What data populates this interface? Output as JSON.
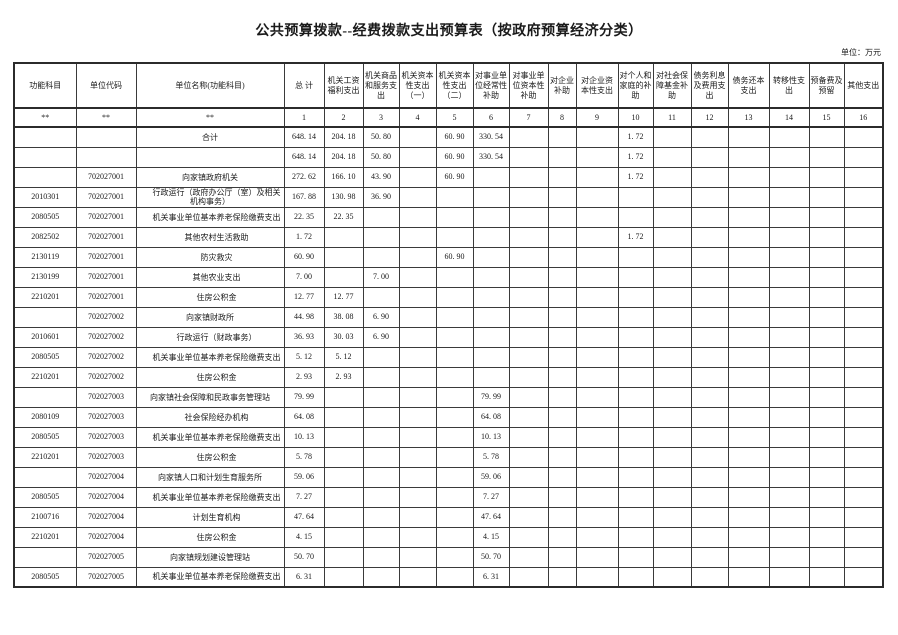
{
  "meta": {
    "title": "公共预算拨款--经费拨款支出预算表（按政府预算经济分类）",
    "unit_note": "单位：万元"
  },
  "table": {
    "headers": [
      "功能科目",
      "单位代码",
      "单位名称(功能科目)",
      "总  计",
      "机关工资福利支出",
      "机关商品和服务支出",
      "机关资本性支出（一）",
      "机关资本性支出（二）",
      "对事业单位经常性补助",
      "对事业单位资本性补助",
      "对企业补助",
      "对企业资本性支出",
      "对个人和家庭的补助",
      "对社会保障基金补助",
      "债务利息及费用支出",
      "债务还本支出",
      "转移性支出",
      "预备费及预留",
      "其他支出"
    ],
    "index_row": [
      "**",
      "**",
      "**",
      "1",
      "2",
      "3",
      "4",
      "5",
      "6",
      "7",
      "8",
      "9",
      "10",
      "11",
      "12",
      "13",
      "14",
      "15",
      "16"
    ],
    "rows": [
      {
        "func": "",
        "code": "",
        "name": "合计",
        "level": "group",
        "values": [
          "648. 14",
          "204. 18",
          "50. 80",
          "",
          "60. 90",
          "330. 54",
          "",
          "",
          "",
          "1. 72",
          "",
          "",
          "",
          "",
          "",
          ""
        ]
      },
      {
        "func": "",
        "code": "",
        "name": "",
        "level": "group",
        "values": [
          "648. 14",
          "204. 18",
          "50. 80",
          "",
          "60. 90",
          "330. 54",
          "",
          "",
          "",
          "1. 72",
          "",
          "",
          "",
          "",
          "",
          ""
        ]
      },
      {
        "func": "",
        "code": "702027001",
        "name": "向家镇政府机关",
        "level": "group",
        "values": [
          "272. 62",
          "166. 10",
          "43. 90",
          "",
          "60. 90",
          "",
          "",
          "",
          "",
          "1. 72",
          "",
          "",
          "",
          "",
          "",
          ""
        ]
      },
      {
        "func": "2010301",
        "code": "702027001",
        "name": "行政运行（政府办公厅（室）及相关机构事务）",
        "level": "detail",
        "values": [
          "167. 88",
          "130. 98",
          "36. 90",
          "",
          "",
          "",
          "",
          "",
          "",
          "",
          "",
          "",
          "",
          "",
          "",
          ""
        ]
      },
      {
        "func": "2080505",
        "code": "702027001",
        "name": "机关事业单位基本养老保险缴费支出",
        "level": "detail",
        "values": [
          "22. 35",
          "22. 35",
          "",
          "",
          "",
          "",
          "",
          "",
          "",
          "",
          "",
          "",
          "",
          "",
          "",
          ""
        ]
      },
      {
        "func": "2082502",
        "code": "702027001",
        "name": "其他农村生活救助",
        "level": "detail",
        "values": [
          "1. 72",
          "",
          "",
          "",
          "",
          "",
          "",
          "",
          "",
          "1. 72",
          "",
          "",
          "",
          "",
          "",
          ""
        ]
      },
      {
        "func": "2130119",
        "code": "702027001",
        "name": "防灾救灾",
        "level": "detail",
        "values": [
          "60. 90",
          "",
          "",
          "",
          "60. 90",
          "",
          "",
          "",
          "",
          "",
          "",
          "",
          "",
          "",
          "",
          ""
        ]
      },
      {
        "func": "2130199",
        "code": "702027001",
        "name": "其他农业支出",
        "level": "detail",
        "values": [
          "7. 00",
          "",
          "7. 00",
          "",
          "",
          "",
          "",
          "",
          "",
          "",
          "",
          "",
          "",
          "",
          "",
          ""
        ]
      },
      {
        "func": "2210201",
        "code": "702027001",
        "name": "住房公积金",
        "level": "detail",
        "values": [
          "12. 77",
          "12. 77",
          "",
          "",
          "",
          "",
          "",
          "",
          "",
          "",
          "",
          "",
          "",
          "",
          "",
          ""
        ]
      },
      {
        "func": "",
        "code": "702027002",
        "name": "向家镇财政所",
        "level": "group",
        "values": [
          "44. 98",
          "38. 08",
          "6. 90",
          "",
          "",
          "",
          "",
          "",
          "",
          "",
          "",
          "",
          "",
          "",
          "",
          ""
        ]
      },
      {
        "func": "2010601",
        "code": "702027002",
        "name": "行政运行（财政事务）",
        "level": "detail",
        "values": [
          "36. 93",
          "30. 03",
          "6. 90",
          "",
          "",
          "",
          "",
          "",
          "",
          "",
          "",
          "",
          "",
          "",
          "",
          ""
        ]
      },
      {
        "func": "2080505",
        "code": "702027002",
        "name": "机关事业单位基本养老保险缴费支出",
        "level": "detail",
        "values": [
          "5. 12",
          "5. 12",
          "",
          "",
          "",
          "",
          "",
          "",
          "",
          "",
          "",
          "",
          "",
          "",
          "",
          ""
        ]
      },
      {
        "func": "2210201",
        "code": "702027002",
        "name": "住房公积金",
        "level": "detail",
        "values": [
          "2. 93",
          "2. 93",
          "",
          "",
          "",
          "",
          "",
          "",
          "",
          "",
          "",
          "",
          "",
          "",
          "",
          ""
        ]
      },
      {
        "func": "",
        "code": "702027003",
        "name": "向家镇社会保障和民政事务管理站",
        "level": "group",
        "values": [
          "79. 99",
          "",
          "",
          "",
          "",
          "79. 99",
          "",
          "",
          "",
          "",
          "",
          "",
          "",
          "",
          "",
          ""
        ]
      },
      {
        "func": "2080109",
        "code": "702027003",
        "name": "社会保险经办机构",
        "level": "detail",
        "values": [
          "64. 08",
          "",
          "",
          "",
          "",
          "64. 08",
          "",
          "",
          "",
          "",
          "",
          "",
          "",
          "",
          "",
          ""
        ]
      },
      {
        "func": "2080505",
        "code": "702027003",
        "name": "机关事业单位基本养老保险缴费支出",
        "level": "detail",
        "values": [
          "10. 13",
          "",
          "",
          "",
          "",
          "10. 13",
          "",
          "",
          "",
          "",
          "",
          "",
          "",
          "",
          "",
          ""
        ]
      },
      {
        "func": "2210201",
        "code": "702027003",
        "name": "住房公积金",
        "level": "detail",
        "values": [
          "5. 78",
          "",
          "",
          "",
          "",
          "5. 78",
          "",
          "",
          "",
          "",
          "",
          "",
          "",
          "",
          "",
          ""
        ]
      },
      {
        "func": "",
        "code": "702027004",
        "name": "向家镇人口和计划生育服务所",
        "level": "group",
        "values": [
          "59. 06",
          "",
          "",
          "",
          "",
          "59. 06",
          "",
          "",
          "",
          "",
          "",
          "",
          "",
          "",
          "",
          ""
        ]
      },
      {
        "func": "2080505",
        "code": "702027004",
        "name": "机关事业单位基本养老保险缴费支出",
        "level": "detail",
        "values": [
          "7. 27",
          "",
          "",
          "",
          "",
          "7. 27",
          "",
          "",
          "",
          "",
          "",
          "",
          "",
          "",
          "",
          ""
        ]
      },
      {
        "func": "2100716",
        "code": "702027004",
        "name": "计划生育机构",
        "level": "detail",
        "values": [
          "47. 64",
          "",
          "",
          "",
          "",
          "47. 64",
          "",
          "",
          "",
          "",
          "",
          "",
          "",
          "",
          "",
          ""
        ]
      },
      {
        "func": "2210201",
        "code": "702027004",
        "name": "住房公积金",
        "level": "detail",
        "values": [
          "4. 15",
          "",
          "",
          "",
          "",
          "4. 15",
          "",
          "",
          "",
          "",
          "",
          "",
          "",
          "",
          "",
          ""
        ]
      },
      {
        "func": "",
        "code": "702027005",
        "name": "向家镇规划建设管理站",
        "level": "group",
        "values": [
          "50. 70",
          "",
          "",
          "",
          "",
          "50. 70",
          "",
          "",
          "",
          "",
          "",
          "",
          "",
          "",
          "",
          ""
        ]
      },
      {
        "func": "2080505",
        "code": "702027005",
        "name": "机关事业单位基本养老保险缴费支出",
        "level": "detail",
        "values": [
          "6. 31",
          "",
          "",
          "",
          "",
          "6. 31",
          "",
          "",
          "",
          "",
          "",
          "",
          "",
          "",
          "",
          ""
        ]
      }
    ]
  }
}
